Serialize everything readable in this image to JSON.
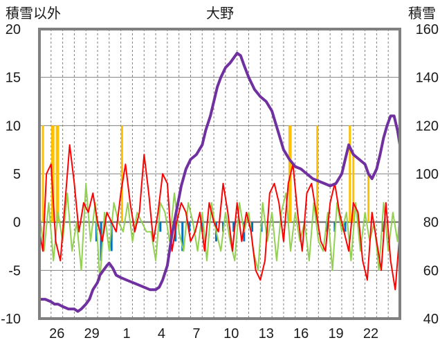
{
  "chart_data": {
    "type": "line",
    "title": "大野",
    "ylabel_left": "積雪以外",
    "ylabel_right": "積雪",
    "ylim_left": [
      -10,
      20
    ],
    "ylim_right": [
      40,
      160
    ],
    "yticks_left": [
      "20",
      "15",
      "10",
      "5",
      "0",
      "-5",
      "-10"
    ],
    "yticks_right": [
      "160",
      "140",
      "120",
      "100",
      "80",
      "60",
      "40"
    ],
    "xlim": [
      0,
      31
    ],
    "xticks": [
      {
        "x": 1.5,
        "label": "26"
      },
      {
        "x": 4.5,
        "label": "29"
      },
      {
        "x": 7.5,
        "label": "1"
      },
      {
        "x": 10.5,
        "label": "4"
      },
      {
        "x": 13.5,
        "label": "7"
      },
      {
        "x": 16.5,
        "label": "10"
      },
      {
        "x": 19.5,
        "label": "13"
      },
      {
        "x": 22.5,
        "label": "16"
      },
      {
        "x": 25.5,
        "label": "19"
      },
      {
        "x": 28.5,
        "label": "22"
      }
    ],
    "grid": true,
    "colors": {
      "snow_depth": "#7030a0",
      "temperature": "#ff0000",
      "wind": "#92d050",
      "precip": "#ffc000",
      "sunshine": "#0070c0",
      "zero_line": "#7f7f7f",
      "frame": "#808080",
      "grid": "#7f7f7f"
    },
    "series": [
      {
        "key": "snow_depth",
        "axis": "right",
        "x": [
          0,
          0.5,
          1,
          1.3,
          1.6,
          2,
          2.5,
          3,
          3.3,
          3.6,
          4,
          4.3,
          4.6,
          5,
          5.2,
          5.5,
          5.8,
          6,
          6.3,
          6.6,
          7,
          7.5,
          8,
          8.5,
          9,
          9.5,
          10,
          10.3,
          10.6,
          11,
          11.4,
          11.8,
          12.2,
          12.6,
          13,
          13.5,
          14,
          14.3,
          14.7,
          15,
          15.3,
          15.6,
          16,
          16.4,
          16.7,
          17,
          17.3,
          17.6,
          18,
          18.5,
          19,
          19.5,
          20,
          20.5,
          21,
          21.5,
          22,
          22.5,
          23,
          23.5,
          24,
          24.5,
          25,
          25.5,
          26,
          26.3,
          26.6,
          27,
          27.5,
          28,
          28.3,
          28.6,
          29,
          29.3,
          29.6,
          29.9,
          30.2,
          30.5,
          30.8,
          31
        ],
        "values": [
          48,
          48,
          47,
          46,
          46,
          45,
          44,
          44,
          43,
          44,
          46,
          48,
          52,
          55,
          58,
          60,
          62,
          63,
          61,
          58,
          57,
          56,
          55,
          54,
          53,
          52,
          52,
          53,
          56,
          62,
          75,
          85,
          95,
          102,
          106,
          108,
          112,
          118,
          124,
          130,
          136,
          140,
          144,
          146,
          148,
          150,
          149,
          145,
          140,
          135,
          132,
          130,
          126,
          118,
          110,
          106,
          103,
          102,
          100,
          98,
          97,
          96,
          95,
          96,
          100,
          106,
          112,
          108,
          106,
          104,
          100,
          98,
          102,
          108,
          115,
          120,
          124,
          124,
          118,
          112
        ]
      },
      {
        "key": "temperature",
        "axis": "left",
        "x": [
          0,
          0.3,
          0.6,
          1,
          1.4,
          1.8,
          2.2,
          2.6,
          3,
          3.4,
          3.8,
          4.2,
          4.6,
          5,
          5.4,
          5.8,
          6.2,
          6.6,
          7,
          7.4,
          7.8,
          8.2,
          8.6,
          9,
          9.4,
          9.8,
          10.2,
          10.6,
          11,
          11.4,
          11.8,
          12.2,
          12.6,
          13,
          13.4,
          13.8,
          14.2,
          14.6,
          15,
          15.4,
          15.8,
          16.2,
          16.6,
          17,
          17.4,
          17.8,
          18.2,
          18.6,
          19,
          19.4,
          19.8,
          20.2,
          20.6,
          21,
          21.4,
          21.8,
          22.2,
          22.6,
          23,
          23.4,
          23.8,
          24.2,
          24.6,
          25,
          25.4,
          25.8,
          26.2,
          26.6,
          27,
          27.4,
          27.8,
          28.2,
          28.6,
          29,
          29.4,
          29.8,
          30.2,
          30.6,
          31
        ],
        "values": [
          -1,
          -3,
          5,
          6,
          -2,
          -4,
          2,
          8,
          4,
          -1,
          2,
          1,
          3,
          0,
          -2,
          1,
          0,
          -1,
          3,
          6,
          2,
          -1,
          1,
          7,
          3,
          -2,
          1,
          5,
          4,
          -3,
          0,
          2,
          1,
          -2,
          -1,
          1,
          -3,
          2,
          0,
          -1,
          4,
          1,
          -3,
          2,
          -2,
          1,
          -1,
          -5,
          -6,
          -4,
          3,
          4,
          2,
          -2,
          4,
          6,
          1,
          -3,
          3,
          4,
          1,
          -2,
          -3,
          2,
          4,
          1,
          -1,
          -3,
          2,
          1,
          -4,
          -6,
          1,
          -2,
          -5,
          2,
          -4,
          -7,
          -1
        ]
      },
      {
        "key": "wind",
        "axis": "left",
        "x": [
          0,
          0.4,
          0.8,
          1.2,
          1.6,
          2,
          2.4,
          2.8,
          3.2,
          3.6,
          4,
          4.4,
          4.8,
          5.2,
          5.6,
          6,
          6.4,
          6.8,
          7.2,
          7.6,
          8,
          8.4,
          8.8,
          9.2,
          9.6,
          10,
          10.4,
          10.8,
          11.2,
          11.6,
          12,
          12.4,
          12.8,
          13.2,
          13.6,
          14,
          14.4,
          14.8,
          15.2,
          15.6,
          16,
          16.4,
          16.8,
          17.2,
          17.6,
          18,
          18.4,
          18.8,
          19.2,
          19.6,
          20,
          20.4,
          20.8,
          21.2,
          21.6,
          22,
          22.4,
          22.8,
          23.2,
          23.6,
          24,
          24.4,
          24.8,
          25.2,
          25.6,
          26,
          26.4,
          26.8,
          27.2,
          27.6,
          28,
          28.4,
          28.8,
          29.2,
          29.6,
          30,
          30.4,
          30.8,
          31
        ],
        "values": [
          1,
          -3,
          2,
          -4,
          1,
          -2,
          3,
          -3,
          0,
          -5,
          4,
          -2,
          2,
          -6,
          1,
          -3,
          2,
          0,
          -1,
          2,
          -2,
          1,
          0,
          -1,
          -1,
          -4,
          2,
          1,
          -2,
          3,
          -1,
          -3,
          2,
          0,
          -3,
          1,
          -4,
          2,
          -1,
          -3,
          1,
          -2,
          -4,
          2,
          -1,
          1,
          -3,
          -5,
          2,
          -2,
          1,
          -4,
          1,
          3,
          -3,
          1,
          -2,
          0,
          -4,
          2,
          -2,
          -3,
          1,
          -5,
          2,
          -1,
          1,
          -4,
          2,
          -3,
          1,
          -2,
          0,
          -5,
          2,
          -3,
          1,
          -2,
          1
        ]
      }
    ],
    "bars": [
      {
        "key": "precip",
        "axis": "left",
        "x": [
          0.3,
          1.1,
          1.2,
          1.5,
          1.6,
          7.1,
          21.5,
          21.6,
          23.9,
          26.7,
          27,
          28.3
        ],
        "values": [
          10,
          10,
          10,
          10,
          10,
          10,
          10,
          10,
          10,
          10,
          7,
          5
        ]
      },
      {
        "key": "sunshine",
        "axis": "left",
        "x": [
          4.9,
          5.3,
          6.2,
          10.4,
          11.7,
          12.3,
          12.9,
          14.0,
          15.2,
          15.8,
          16.7,
          17.6,
          18.3,
          19.1,
          24.7,
          25.4,
          26.3,
          29.5
        ],
        "values": [
          -2,
          -4,
          -3,
          -1,
          -2,
          -3,
          -1,
          -1,
          -2,
          -1,
          -1,
          -2,
          -1,
          -1,
          -1,
          -1,
          -1,
          -1
        ]
      }
    ]
  }
}
